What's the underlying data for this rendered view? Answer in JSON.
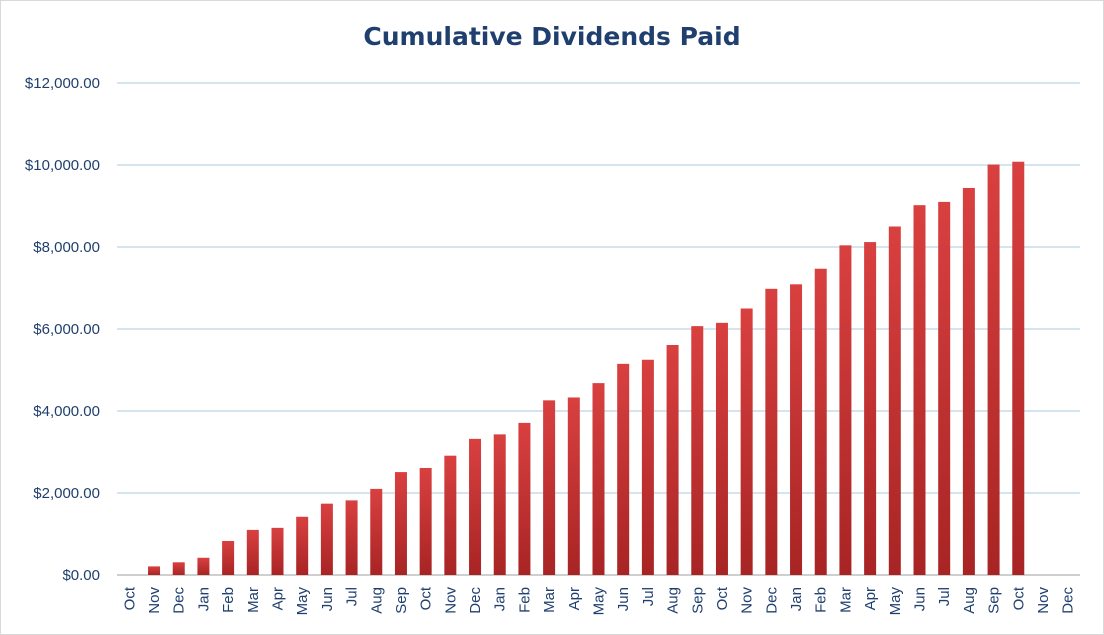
{
  "chart_data": {
    "type": "bar",
    "title": "Cumulative Dividends Paid",
    "xlabel": "",
    "ylabel": "",
    "ylim": [
      0,
      12000
    ],
    "y_tick_labels": [
      "$0.00",
      "$2,000.00",
      "$4,000.00",
      "$6,000.00",
      "$8,000.00",
      "$10,000.00",
      "$12,000.00"
    ],
    "y_ticks": [
      0,
      2000,
      4000,
      6000,
      8000,
      10000,
      12000
    ],
    "grid": true,
    "legend": "none",
    "bar_color_top": "#d94040",
    "bar_color_bottom": "#a82424",
    "gridline_color": "#c9dbe9",
    "text_color": "#1f3f6e",
    "categories": [
      "Oct",
      "Nov",
      "Dec",
      "Jan",
      "Feb",
      "Mar",
      "Apr",
      "May",
      "Jun",
      "Jul",
      "Aug",
      "Sep",
      "Oct",
      "Nov",
      "Dec",
      "Jan",
      "Feb",
      "Mar",
      "Apr",
      "May",
      "Jun",
      "Jul",
      "Aug",
      "Sep",
      "Oct",
      "Nov",
      "Dec",
      "Jan",
      "Feb",
      "Mar",
      "Apr",
      "May",
      "Jun",
      "Jul",
      "Aug",
      "Sep",
      "Oct",
      "Nov",
      "Dec"
    ],
    "values": [
      0,
      210,
      310,
      420,
      830,
      1100,
      1150,
      1420,
      1740,
      1820,
      2100,
      2510,
      2610,
      2910,
      3320,
      3430,
      3710,
      4260,
      4330,
      4680,
      5150,
      5250,
      5610,
      6070,
      6150,
      6500,
      6980,
      7090,
      7470,
      8040,
      8120,
      8500,
      9020,
      9100,
      9440,
      10010,
      10080,
      null,
      null
    ]
  }
}
